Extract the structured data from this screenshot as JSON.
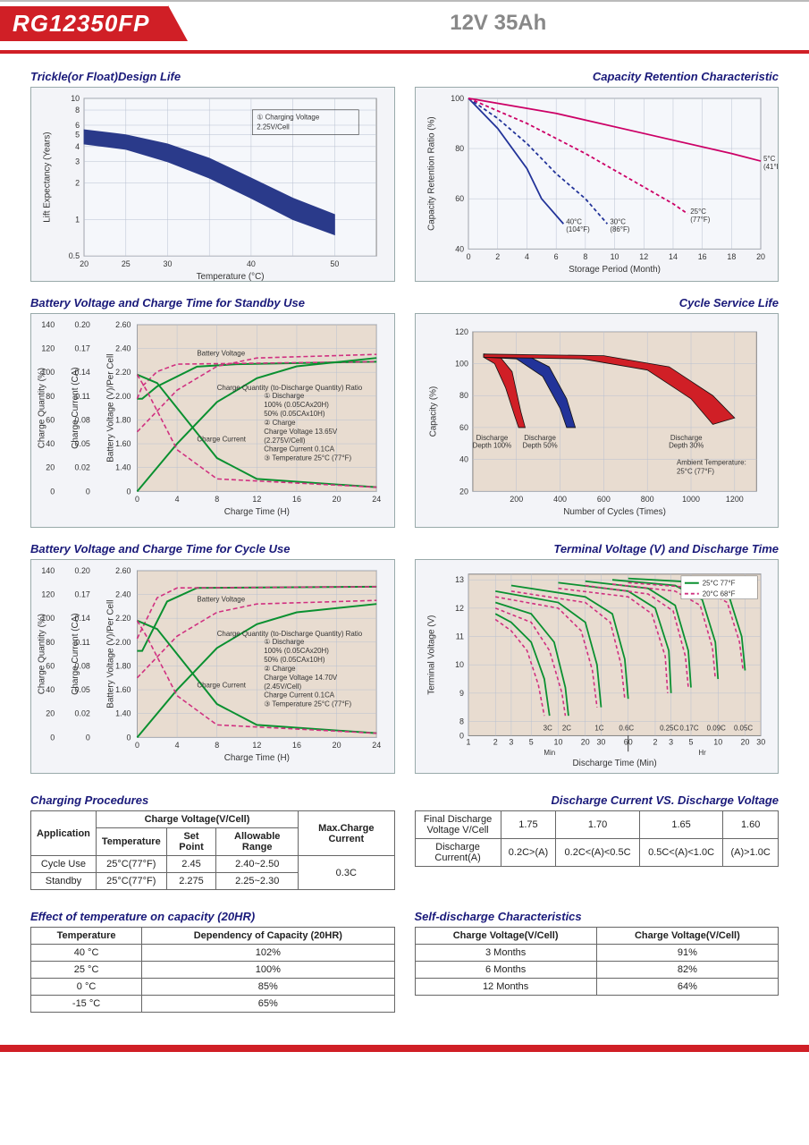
{
  "header": {
    "model": "RG12350FP",
    "spec": "12V  35Ah"
  },
  "charts": {
    "trickle": {
      "title": "Trickle(or Float)Design Life",
      "ylabel": "Lift Expectancy (Years)",
      "xlabel": "Temperature (°C)",
      "yticks": [
        "0.5",
        "1",
        "2",
        "3",
        "4",
        "5",
        "6",
        "8",
        "10"
      ],
      "xticks": [
        "20",
        "25",
        "30",
        "40",
        "50"
      ],
      "annotation": "① Charging Voltage\n2.25V/Cell",
      "band_color": "#2a3a8a",
      "band_upper": [
        [
          20,
          5.5
        ],
        [
          25,
          5
        ],
        [
          30,
          4.2
        ],
        [
          35,
          3.2
        ],
        [
          40,
          2.2
        ],
        [
          45,
          1.5
        ],
        [
          50,
          1.1
        ]
      ],
      "band_lower": [
        [
          20,
          4.2
        ],
        [
          25,
          3.8
        ],
        [
          30,
          3.0
        ],
        [
          35,
          2.2
        ],
        [
          40,
          1.5
        ],
        [
          45,
          1.0
        ],
        [
          50,
          0.75
        ]
      ]
    },
    "retention": {
      "title": "Capacity Retention Characteristic",
      "ylabel": "Capacity Retention Ratio (%)",
      "xlabel": "Storage Period (Month)",
      "yticks": [
        "40",
        "60",
        "80",
        "100"
      ],
      "xticks": [
        "0",
        "2",
        "4",
        "6",
        "8",
        "10",
        "12",
        "14",
        "16",
        "18",
        "20"
      ],
      "series": [
        {
          "label": "40°C (104°F)",
          "color": "#223399",
          "dash": false,
          "pts": [
            [
              0,
              100
            ],
            [
              2,
              88
            ],
            [
              4,
              72
            ],
            [
              5,
              60
            ],
            [
              6.5,
              50
            ]
          ]
        },
        {
          "label": "30°C (86°F)",
          "color": "#223399",
          "dash": true,
          "pts": [
            [
              0,
              100
            ],
            [
              2,
              92
            ],
            [
              4,
              82
            ],
            [
              6,
              70
            ],
            [
              8,
              60
            ],
            [
              9.5,
              50
            ]
          ]
        },
        {
          "label": "25°C (77°F)",
          "color": "#cc0066",
          "dash": true,
          "pts": [
            [
              0,
              100
            ],
            [
              4,
              90
            ],
            [
              8,
              78
            ],
            [
              11,
              68
            ],
            [
              14,
              58
            ],
            [
              15,
              54
            ]
          ]
        },
        {
          "label": "5°C (41°F)",
          "color": "#cc0066",
          "dash": false,
          "pts": [
            [
              0,
              100
            ],
            [
              6,
              94
            ],
            [
              12,
              86
            ],
            [
              18,
              78
            ],
            [
              20,
              75
            ]
          ]
        }
      ]
    },
    "standby": {
      "title": "Battery Voltage and Charge Time for Standby Use",
      "y1label": "Charge Quantity (%)",
      "y2label": "Charge Current (CA)",
      "y3label": "Battery Voltage (V)/Per Cell",
      "xlabel": "Charge Time (H)",
      "y1ticks": [
        "0",
        "20",
        "40",
        "60",
        "80",
        "100",
        "120",
        "140"
      ],
      "y2ticks": [
        "0",
        "0.02",
        "0.05",
        "0.08",
        "0.11",
        "0.14",
        "0.17",
        "0.20"
      ],
      "y3ticks": [
        "0",
        "1.40",
        "1.60",
        "1.80",
        "2.00",
        "2.20",
        "2.40",
        "2.60"
      ],
      "xticks": [
        "0",
        "4",
        "8",
        "12",
        "16",
        "20",
        "24"
      ],
      "note": "① Discharge\n   100% (0.05CAx20H)\n   50% (0.05CAx10H)\n② Charge\n   Charge Voltage 13.65V\n   (2.275V/Cell)\n   Charge Current 0.1CA\n③ Temperature 25°C (77°F)",
      "green": "#0a9030",
      "pink": "#d03080",
      "bv100": [
        [
          0,
          2.0
        ],
        [
          0.5,
          2.0
        ],
        [
          2,
          2.1
        ],
        [
          6,
          2.26
        ],
        [
          10,
          2.28
        ],
        [
          24,
          2.3
        ]
      ],
      "bv50": [
        [
          0,
          2.0
        ],
        [
          0.5,
          2.1
        ],
        [
          2,
          2.22
        ],
        [
          4,
          2.28
        ],
        [
          24,
          2.3
        ]
      ],
      "cq100": [
        [
          0,
          0
        ],
        [
          4,
          40
        ],
        [
          8,
          75
        ],
        [
          12,
          95
        ],
        [
          16,
          105
        ],
        [
          24,
          112
        ]
      ],
      "cq50": [
        [
          0,
          50
        ],
        [
          4,
          85
        ],
        [
          8,
          105
        ],
        [
          12,
          112
        ],
        [
          24,
          115
        ]
      ],
      "cc100": [
        [
          0,
          0.14
        ],
        [
          2,
          0.13
        ],
        [
          4,
          0.1
        ],
        [
          8,
          0.04
        ],
        [
          12,
          0.015
        ],
        [
          24,
          0.005
        ]
      ],
      "cc50": [
        [
          0,
          0.14
        ],
        [
          1,
          0.12
        ],
        [
          4,
          0.05
        ],
        [
          8,
          0.015
        ],
        [
          24,
          0.005
        ]
      ]
    },
    "cyclelife": {
      "title": "Cycle Service Life",
      "ylabel": "Capacity (%)",
      "xlabel": "Number of Cycles (Times)",
      "yticks": [
        "20",
        "40",
        "60",
        "80",
        "100",
        "120"
      ],
      "xticks": [
        "200",
        "400",
        "600",
        "800",
        "1000",
        "1200"
      ],
      "ambient": "Ambient Temperature:\n25°C (77°F)",
      "bands": [
        {
          "label": "Discharge\nDepth 100%",
          "colors": [
            "#d01f26",
            "#111"
          ],
          "upper": [
            [
              50,
              106
            ],
            [
              120,
              105
            ],
            [
              180,
              95
            ],
            [
              220,
              70
            ],
            [
              240,
              60
            ]
          ],
          "lower": [
            [
              50,
              104
            ],
            [
              100,
              100
            ],
            [
              150,
              85
            ],
            [
              190,
              68
            ],
            [
              210,
              60
            ]
          ]
        },
        {
          "label": "Discharge\nDepth 50%",
          "colors": [
            "#223399",
            "#111"
          ],
          "upper": [
            [
              50,
              106
            ],
            [
              250,
              105
            ],
            [
              350,
              98
            ],
            [
              430,
              78
            ],
            [
              470,
              60
            ]
          ],
          "lower": [
            [
              50,
              104
            ],
            [
              200,
              103
            ],
            [
              320,
              92
            ],
            [
              400,
              72
            ],
            [
              430,
              60
            ]
          ]
        },
        {
          "label": "Discharge\nDepth 30%",
          "colors": [
            "#d01f26",
            "#111"
          ],
          "upper": [
            [
              50,
              106
            ],
            [
              600,
              105
            ],
            [
              900,
              98
            ],
            [
              1100,
              80
            ],
            [
              1200,
              66
            ]
          ],
          "lower": [
            [
              50,
              104
            ],
            [
              500,
              103
            ],
            [
              800,
              96
            ],
            [
              1000,
              78
            ],
            [
              1100,
              62
            ]
          ]
        }
      ]
    },
    "cycle": {
      "title": "Battery Voltage and Charge Time for Cycle Use",
      "note": "① Discharge\n   100% (0.05CAx20H)\n   50% (0.05CAx10H)\n② Charge\n   Charge Voltage 14.70V\n   (2.45V/Cell)\n   Charge Current 0.1CA\n③ Temperature 25°C (77°F)"
    },
    "terminal": {
      "title": "Terminal Voltage (V) and Discharge Time",
      "ylabel": "Terminal Voltage (V)",
      "xlabel": "Discharge Time (Min)",
      "yticks": [
        "0",
        "8",
        "9",
        "10",
        "11",
        "12",
        "13"
      ],
      "legend": [
        {
          "label": "25°C 77°F",
          "color": "#0a9030"
        },
        {
          "label": "20°C 68°F",
          "color": "#d03080"
        }
      ],
      "rates": [
        "3C",
        "2C",
        "1C",
        "0.6C",
        "0.25C",
        "0.17C",
        "0.09C",
        "0.05C"
      ],
      "curves": [
        {
          "rate": "3C",
          "c1": [
            [
              2,
              11.8
            ],
            [
              3,
              11.5
            ],
            [
              5,
              10.8
            ],
            [
              7,
              9.5
            ],
            [
              8,
              8.2
            ]
          ],
          "c2": [
            [
              2,
              11.6
            ],
            [
              3,
              11.2
            ],
            [
              4.5,
              10.5
            ],
            [
              6,
              9.3
            ],
            [
              7,
              8.2
            ]
          ]
        },
        {
          "rate": "2C",
          "c1": [
            [
              2,
              12.2
            ],
            [
              5,
              11.8
            ],
            [
              9,
              10.8
            ],
            [
              12,
              9.2
            ],
            [
              13,
              8.2
            ]
          ],
          "c2": [
            [
              2,
              12.0
            ],
            [
              5,
              11.5
            ],
            [
              8,
              10.5
            ],
            [
              11,
              9.0
            ],
            [
              12,
              8.2
            ]
          ]
        },
        {
          "rate": "1C",
          "c1": [
            [
              2,
              12.6
            ],
            [
              10,
              12.2
            ],
            [
              20,
              11.5
            ],
            [
              27,
              10.0
            ],
            [
              30,
              8.5
            ]
          ],
          "c2": [
            [
              2,
              12.4
            ],
            [
              10,
              12.0
            ],
            [
              18,
              11.2
            ],
            [
              24,
              9.8
            ],
            [
              27,
              8.5
            ]
          ]
        },
        {
          "rate": "0.6C",
          "c1": [
            [
              3,
              12.8
            ],
            [
              20,
              12.4
            ],
            [
              40,
              11.8
            ],
            [
              55,
              10.2
            ],
            [
              60,
              8.8
            ]
          ],
          "c2": [
            [
              3,
              12.6
            ],
            [
              20,
              12.2
            ],
            [
              38,
              11.5
            ],
            [
              50,
              10.0
            ],
            [
              55,
              8.8
            ]
          ]
        },
        {
          "rate": "0.25C",
          "c1": [
            [
              10,
              12.9
            ],
            [
              60,
              12.6
            ],
            [
              120,
              12.0
            ],
            [
              170,
              10.5
            ],
            [
              180,
              9.0
            ]
          ],
          "c2": [
            [
              10,
              12.7
            ],
            [
              60,
              12.4
            ],
            [
              110,
              11.8
            ],
            [
              155,
              10.3
            ],
            [
              165,
              9.0
            ]
          ]
        },
        {
          "rate": "0.17C",
          "c1": [
            [
              20,
              12.95
            ],
            [
              100,
              12.7
            ],
            [
              200,
              12.1
            ],
            [
              280,
              10.5
            ],
            [
              300,
              9.2
            ]
          ],
          "c2": [
            [
              20,
              12.8
            ],
            [
              100,
              12.5
            ],
            [
              190,
              11.9
            ],
            [
              260,
              10.3
            ],
            [
              280,
              9.2
            ]
          ]
        },
        {
          "rate": "0.09C",
          "c1": [
            [
              40,
              13.0
            ],
            [
              200,
              12.8
            ],
            [
              400,
              12.3
            ],
            [
              560,
              10.8
            ],
            [
              600,
              9.5
            ]
          ],
          "c2": [
            [
              40,
              12.85
            ],
            [
              200,
              12.6
            ],
            [
              380,
              12.1
            ],
            [
              520,
              10.6
            ],
            [
              560,
              9.5
            ]
          ]
        },
        {
          "rate": "0.05C",
          "c1": [
            [
              60,
              13.05
            ],
            [
              400,
              12.9
            ],
            [
              800,
              12.4
            ],
            [
              1100,
              11.0
            ],
            [
              1200,
              9.8
            ]
          ],
          "c2": [
            [
              60,
              12.9
            ],
            [
              400,
              12.7
            ],
            [
              760,
              12.2
            ],
            [
              1040,
              10.8
            ],
            [
              1140,
              9.8
            ]
          ]
        }
      ]
    }
  },
  "tables": {
    "charging": {
      "title": "Charging Procedures",
      "headers": {
        "app": "Application",
        "cv": "Charge Voltage(V/Cell)",
        "temp": "Temperature",
        "sp": "Set Point",
        "ar": "Allowable Range",
        "max": "Max.Charge Current"
      },
      "rows": [
        {
          "app": "Cycle Use",
          "temp": "25°C(77°F)",
          "sp": "2.45",
          "ar": "2.40~2.50"
        },
        {
          "app": "Standby",
          "temp": "25°C(77°F)",
          "sp": "2.275",
          "ar": "2.25~2.30"
        }
      ],
      "max": "0.3C"
    },
    "discharge_iv": {
      "title": "Discharge Current VS. Discharge Voltage",
      "r1": {
        "label": "Final Discharge\nVoltage V/Cell",
        "cells": [
          "1.75",
          "1.70",
          "1.65",
          "1.60"
        ]
      },
      "r2": {
        "label": "Discharge\nCurrent(A)",
        "cells": [
          "0.2C>(A)",
          "0.2C<(A)<0.5C",
          "0.5C<(A)<1.0C",
          "(A)>1.0C"
        ]
      }
    },
    "temp_cap": {
      "title": "Effect of temperature on capacity (20HR)",
      "headers": [
        "Temperature",
        "Dependency of Capacity (20HR)"
      ],
      "rows": [
        [
          "40 °C",
          "102%"
        ],
        [
          "25 °C",
          "100%"
        ],
        [
          "0 °C",
          "85%"
        ],
        [
          "-15 °C",
          "65%"
        ]
      ]
    },
    "self_discharge": {
      "title": "Self-discharge Characteristics",
      "headers": [
        "Charge Voltage(V/Cell)",
        "Charge Voltage(V/Cell)"
      ],
      "rows": [
        [
          "3 Months",
          "91%"
        ],
        [
          "6 Months",
          "82%"
        ],
        [
          "12 Months",
          "64%"
        ]
      ]
    }
  }
}
